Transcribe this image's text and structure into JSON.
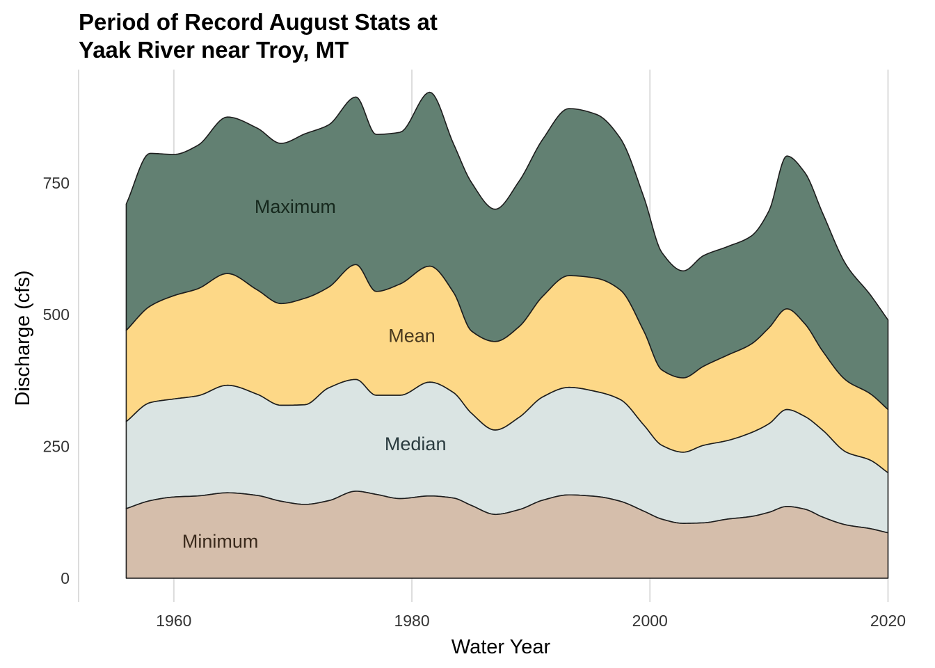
{
  "chart_data": {
    "type": "area",
    "title_lines": [
      "Period of Record August Stats at",
      "Yaak River near Troy, MT"
    ],
    "xlabel": "Water Year",
    "ylabel": "Discharge (cfs)",
    "xlim": [
      1952,
      2020.5
    ],
    "ylim": [
      -45,
      965
    ],
    "xticks": [
      1960,
      1980,
      2000,
      2020
    ],
    "yticks": [
      0,
      250,
      500,
      750
    ],
    "grid": "vertical major lines only",
    "x": [
      1956,
      1958,
      1960,
      1962,
      1964.5,
      1967,
      1969,
      1971,
      1973,
      1975.3,
      1977,
      1979,
      1981.5,
      1983.5,
      1985,
      1987,
      1989,
      1991,
      1993.2,
      1995.5,
      1997.5,
      1999.5,
      2001,
      2002.8,
      2004.5,
      2006.5,
      2008.5,
      2010,
      2011.5,
      2013,
      2014.5,
      2016.5,
      2018.5,
      2020
    ],
    "series": [
      {
        "name": "Minimum",
        "color": "#d5beab",
        "values": [
          132,
          147,
          154,
          156,
          162,
          157,
          146,
          140,
          147,
          165,
          159,
          151,
          156,
          152,
          138,
          121,
          130,
          148,
          158,
          155,
          146,
          127,
          112,
          104,
          105,
          112,
          117,
          125,
          136,
          131,
          116,
          101,
          94,
          86
        ]
      },
      {
        "name": "Median",
        "color": "#dae4e3",
        "values": [
          165,
          186,
          186,
          190,
          204,
          192,
          182,
          189,
          214,
          212,
          188,
          196,
          216,
          200,
          175,
          160,
          175,
          196,
          204,
          199,
          193,
          163,
          140,
          135,
          147,
          149,
          159,
          168,
          184,
          176,
          165,
          138,
          130,
          114
        ]
      },
      {
        "name": "Mean",
        "color": "#fdd887",
        "values": [
          173,
          183,
          196,
          203,
          212,
          198,
          193,
          202,
          191,
          218,
          197,
          211,
          220,
          190,
          156,
          168,
          172,
          191,
          212,
          215,
          208,
          178,
          143,
          141,
          150,
          162,
          168,
          182,
          191,
          176,
          150,
          136,
          126,
          120
        ]
      },
      {
        "name": "Maximum",
        "color": "#628072",
        "values": [
          240,
          290,
          268,
          272,
          297,
          307,
          304,
          312,
          308,
          318,
          298,
          288,
          330,
          282,
          282,
          251,
          276,
          298,
          317,
          311,
          288,
          254,
          223,
          203,
          210,
          206,
          205,
          222,
          290,
          287,
          262,
          219,
          188,
          170
        ]
      }
    ],
    "labels": [
      {
        "text": "Maximum",
        "x": 1970.2,
        "y": 705,
        "color": "#16281d"
      },
      {
        "text": "Mean",
        "x": 1980,
        "y": 460,
        "color": "#4a3a1f"
      },
      {
        "text": "Median",
        "x": 1980.3,
        "y": 255,
        "color": "#2a3b3f"
      },
      {
        "text": "Minimum",
        "x": 1963.9,
        "y": 70,
        "color": "#3a2a1c"
      }
    ]
  }
}
